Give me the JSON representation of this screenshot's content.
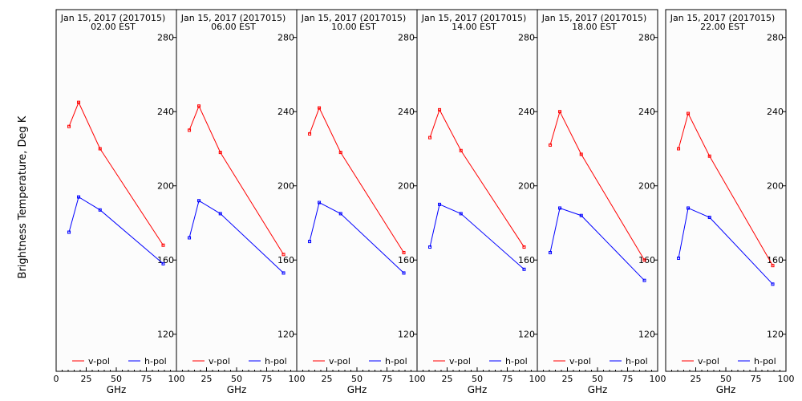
{
  "figure": {
    "ylabel": "Brightness Temperature, Deg K",
    "xlabel": "GHz",
    "colors": {
      "vpol": "#ff0000",
      "hpol": "#0000ff",
      "background": "#fcfcfc"
    }
  },
  "chart_data": [
    {
      "type": "line",
      "title": "Jan 15, 2017 (2017015)",
      "subtitle": "02.00 EST",
      "x": [
        10.7,
        18.7,
        36.5,
        89.0
      ],
      "series": [
        {
          "name": "v-pol",
          "values": [
            232,
            245,
            220,
            168
          ]
        },
        {
          "name": "h-pol",
          "values": [
            175,
            194,
            187,
            158
          ]
        }
      ],
      "xlim": [
        0,
        100
      ],
      "ylim": [
        100,
        295
      ],
      "xticks": [
        "0",
        "25",
        "50",
        "75",
        "100"
      ],
      "yticks": [
        "120",
        "160",
        "200",
        "240",
        "280"
      ],
      "xlabel": "GHz",
      "legend": "bottom"
    },
    {
      "type": "line",
      "title": "Jan 15, 2017 (2017015)",
      "subtitle": "06.00 EST",
      "x": [
        10.7,
        18.7,
        36.5,
        89.0
      ],
      "series": [
        {
          "name": "v-pol",
          "values": [
            230,
            243,
            218,
            163
          ]
        },
        {
          "name": "h-pol",
          "values": [
            172,
            192,
            185,
            153
          ]
        }
      ],
      "xlim": [
        0,
        100
      ],
      "ylim": [
        100,
        295
      ],
      "xticks": [
        "25",
        "50",
        "75",
        "100"
      ],
      "yticks": [
        "120",
        "160",
        "200",
        "240",
        "280"
      ],
      "xlabel": "GHz",
      "legend": "bottom"
    },
    {
      "type": "line",
      "title": "Jan 15, 2017 (2017015)",
      "subtitle": "10.00 EST",
      "x": [
        10.7,
        18.7,
        36.5,
        89.0
      ],
      "series": [
        {
          "name": "v-pol",
          "values": [
            228,
            242,
            218,
            164
          ]
        },
        {
          "name": "h-pol",
          "values": [
            170,
            191,
            185,
            153
          ]
        }
      ],
      "xlim": [
        0,
        100
      ],
      "ylim": [
        100,
        295
      ],
      "xticks": [
        "25",
        "50",
        "75",
        "100"
      ],
      "yticks": [
        "120",
        "160",
        "200",
        "240",
        "280"
      ],
      "xlabel": "GHz",
      "legend": "bottom"
    },
    {
      "type": "line",
      "title": "Jan 15, 2017 (2017015)",
      "subtitle": "14.00 EST",
      "x": [
        10.7,
        18.7,
        36.5,
        89.0
      ],
      "series": [
        {
          "name": "v-pol",
          "values": [
            226,
            241,
            219,
            167
          ]
        },
        {
          "name": "h-pol",
          "values": [
            167,
            190,
            185,
            155
          ]
        }
      ],
      "xlim": [
        0,
        100
      ],
      "ylim": [
        100,
        295
      ],
      "xticks": [
        "25",
        "50",
        "75",
        "100"
      ],
      "yticks": [
        "120",
        "160",
        "200",
        "240",
        "280"
      ],
      "xlabel": "GHz",
      "legend": "bottom"
    },
    {
      "type": "line",
      "title": "Jan 15, 2017 (2017015)",
      "subtitle": "18.00 EST",
      "x": [
        10.7,
        18.7,
        36.5,
        89.0
      ],
      "series": [
        {
          "name": "v-pol",
          "values": [
            222,
            240,
            217,
            160
          ]
        },
        {
          "name": "h-pol",
          "values": [
            164,
            188,
            184,
            149
          ]
        }
      ],
      "xlim": [
        0,
        100
      ],
      "ylim": [
        100,
        295
      ],
      "xticks": [
        "25",
        "50",
        "75",
        "100"
      ],
      "yticks": [
        "120",
        "160",
        "200",
        "240",
        "280"
      ],
      "xlabel": "GHz",
      "legend": "bottom"
    },
    {
      "type": "line",
      "title": "Jan 15, 2017 (2017015)",
      "subtitle": "22.00 EST",
      "x": [
        10.7,
        18.7,
        36.5,
        89.0
      ],
      "series": [
        {
          "name": "v-pol",
          "values": [
            220,
            239,
            216,
            157
          ]
        },
        {
          "name": "h-pol",
          "values": [
            161,
            188,
            183,
            147
          ]
        }
      ],
      "xlim": [
        0,
        100
      ],
      "ylim": [
        100,
        295
      ],
      "xticks": [
        "25",
        "50",
        "75",
        "100"
      ],
      "yticks": [
        "120",
        "160",
        "200",
        "240",
        "280"
      ],
      "xlabel": "GHz",
      "legend": "bottom"
    }
  ]
}
